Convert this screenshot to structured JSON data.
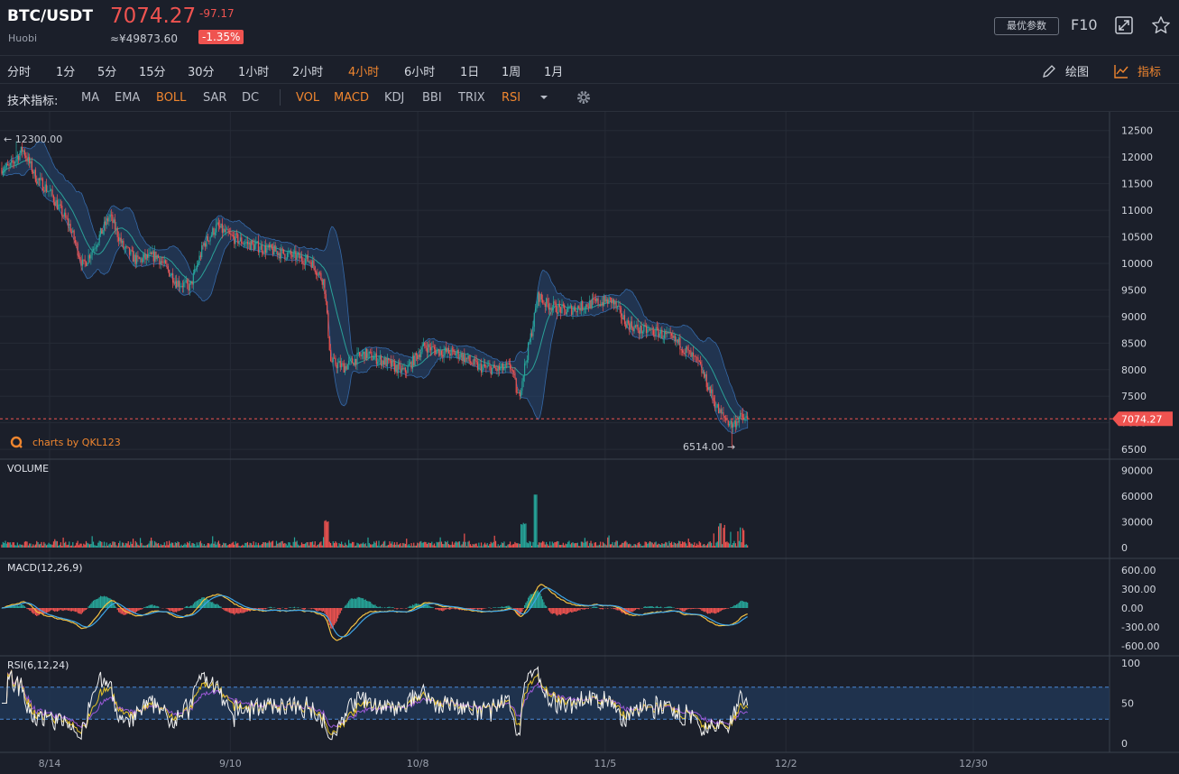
{
  "header": {
    "pair": "BTC/USDT",
    "exchange": "Huobi",
    "price": "7074.27",
    "change": "-97.17",
    "cny_price": "≈¥49873.60",
    "change_pct": "-1.35%",
    "optimize_label": "最优参数",
    "f10_label": "F10",
    "fullscreen_icon": "fullscreen-icon",
    "favorite_icon": "star-icon"
  },
  "timeframes": [
    {
      "label": "分时",
      "active": false
    },
    {
      "label": "1分",
      "active": false
    },
    {
      "label": "5分",
      "active": false
    },
    {
      "label": "15分",
      "active": false
    },
    {
      "label": "30分",
      "active": false
    },
    {
      "label": "1小时",
      "active": false
    },
    {
      "label": "2小时",
      "active": false
    },
    {
      "label": "4小时",
      "active": true
    },
    {
      "label": "6小时",
      "active": false
    },
    {
      "label": "1日",
      "active": false
    },
    {
      "label": "1周",
      "active": false
    },
    {
      "label": "1月",
      "active": false
    }
  ],
  "tools": {
    "draw_label": "绘图",
    "indicator_label": "指标"
  },
  "indicators": {
    "label": "技术指标:",
    "main": [
      {
        "label": "MA",
        "active": false
      },
      {
        "label": "EMA",
        "active": false
      },
      {
        "label": "BOLL",
        "active": true
      },
      {
        "label": "SAR",
        "active": false
      },
      {
        "label": "DC",
        "active": false
      }
    ],
    "sub": [
      {
        "label": "VOL",
        "active": true
      },
      {
        "label": "MACD",
        "active": true
      },
      {
        "label": "KDJ",
        "active": false
      },
      {
        "label": "BBI",
        "active": false
      },
      {
        "label": "TRIX",
        "active": false
      },
      {
        "label": "RSI",
        "active": true
      }
    ]
  },
  "chart_data": {
    "type": "candlestick",
    "colors": {
      "up": "#26a69a",
      "down": "#ef5350",
      "boll_band": "#27466f",
      "boll_mid": "#2aa198",
      "macd_dif": "#f5c242",
      "macd_dea": "#3ea6e8",
      "rsi6": "#f0f0f0",
      "rsi12": "#e6c229",
      "rsi24": "#9b59d6"
    },
    "main": {
      "ylim": [
        6400,
        12750
      ],
      "yticks": [
        "12500",
        "12000",
        "11500",
        "11000",
        "10500",
        "10000",
        "9500",
        "9000",
        "8500",
        "8000",
        "7500",
        "7000",
        "6500"
      ],
      "max_label": "12300.00",
      "min_label": "6514.00",
      "last_price": "7074.27",
      "watermark": "charts by QKL123",
      "price_path": [
        [
          "8/08",
          11800
        ],
        [
          "8/10",
          12150
        ],
        [
          "8/12",
          11600
        ],
        [
          "8/14",
          11350
        ],
        [
          "8/17",
          10700
        ],
        [
          "8/19",
          9950
        ],
        [
          "8/21",
          10400
        ],
        [
          "8/23",
          10900
        ],
        [
          "8/25",
          10300
        ],
        [
          "8/27",
          10050
        ],
        [
          "8/30",
          10150
        ],
        [
          "9/02",
          9650
        ],
        [
          "9/04",
          9550
        ],
        [
          "9/06",
          10350
        ],
        [
          "9/08",
          10700
        ],
        [
          "9/10",
          10500
        ],
        [
          "9/13",
          10350
        ],
        [
          "9/16",
          10250
        ],
        [
          "9/19",
          10150
        ],
        [
          "9/22",
          10050
        ],
        [
          "9/24",
          9650
        ],
        [
          "9/25",
          8150
        ],
        [
          "9/27",
          8050
        ],
        [
          "9/30",
          8300
        ],
        [
          "10/03",
          8150
        ],
        [
          "10/06",
          7950
        ],
        [
          "10/09",
          8450
        ],
        [
          "10/11",
          8350
        ],
        [
          "10/14",
          8300
        ],
        [
          "10/17",
          8050
        ],
        [
          "10/20",
          8000
        ],
        [
          "10/22",
          8050
        ],
        [
          "10/23",
          7450
        ],
        [
          "10/25",
          8700
        ],
        [
          "10/26",
          9400
        ],
        [
          "10/27",
          9250
        ],
        [
          "10/30",
          9100
        ],
        [
          "11/03",
          9250
        ],
        [
          "11/06",
          9300
        ],
        [
          "11/08",
          8900
        ],
        [
          "11/10",
          8750
        ],
        [
          "11/13",
          8700
        ],
        [
          "11/16",
          8500
        ],
        [
          "11/19",
          8100
        ],
        [
          "11/22",
          7200
        ],
        [
          "11/24",
          6950
        ],
        [
          "11/25",
          7100
        ],
        [
          "11/26",
          7074
        ]
      ]
    },
    "volume": {
      "title": "VOLUME",
      "ylim": [
        0,
        95000
      ],
      "yticks": [
        "90000",
        "60000",
        "30000",
        "0"
      ]
    },
    "macd": {
      "title": "MACD(12,26,9)",
      "ylim": [
        -700,
        700
      ],
      "yticks": [
        "600.00",
        "300.00",
        "0.00",
        "-300.00",
        "-600.00"
      ]
    },
    "rsi": {
      "title": "RSI(6,12,24)",
      "ylim": [
        0,
        100
      ],
      "yticks": [
        "100",
        "50",
        "0"
      ],
      "band": [
        30,
        70
      ]
    },
    "x_ticks": [
      "8/14",
      "9/10",
      "10/8",
      "11/5",
      "12/2",
      "12/30"
    ],
    "settings_icon": "gear-icon"
  }
}
